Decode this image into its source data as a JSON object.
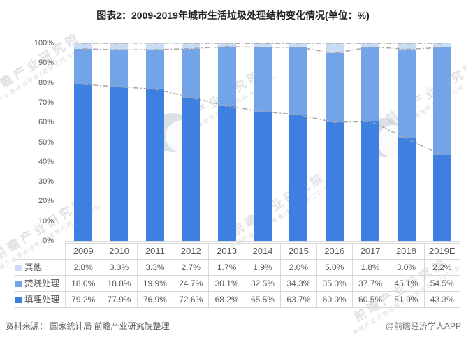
{
  "title": "图表2：2009-2019年城市生活垃圾处理结构变化情况(单位：%)",
  "chart_data": {
    "type": "bar",
    "stacked": true,
    "categories": [
      "2009",
      "2010",
      "2011",
      "2012",
      "2013",
      "2014",
      "2015",
      "2016",
      "2017",
      "2018",
      "2019E"
    ],
    "series": [
      {
        "name": "填埋处理",
        "key": "landfill",
        "color": "#3e80e1",
        "values": [
          79.2,
          77.9,
          76.9,
          72.6,
          68.2,
          65.5,
          63.7,
          60.0,
          60.5,
          51.9,
          43.3
        ]
      },
      {
        "name": "焚烧处理",
        "key": "incineration",
        "color": "#74a4e8",
        "values": [
          18.0,
          18.8,
          19.9,
          24.7,
          30.1,
          32.5,
          34.3,
          35.0,
          37.7,
          45.1,
          54.5
        ]
      },
      {
        "name": "其他",
        "key": "other",
        "color": "#c9dcf4",
        "values": [
          2.8,
          3.3,
          3.3,
          2.7,
          1.7,
          1.9,
          2.0,
          5.0,
          1.8,
          3.0,
          2.2
        ]
      }
    ],
    "overlay_lines": {
      "type": "cumulative-dash-dot",
      "color": "#a6a6a6",
      "note": "gray dash-dot lines drawn at cumulative totals of each stacked series (landfill; landfill+incineration; total=100%)"
    },
    "y_ticks": [
      "100%",
      "90%",
      "80%",
      "70%",
      "60%",
      "50%",
      "40%",
      "30%",
      "20%",
      "10%",
      "0%"
    ],
    "ylim": [
      0,
      100
    ],
    "grid": false,
    "legend_position": "table-left-column"
  },
  "table": {
    "columns": [
      "2009",
      "2010",
      "2011",
      "2012",
      "2013",
      "2014",
      "2015",
      "2016",
      "2017",
      "2018",
      "2019E"
    ],
    "rows": [
      {
        "label": "其他",
        "color": "#c9dcf4",
        "values": [
          "2.8%",
          "3.3%",
          "3.3%",
          "2.7%",
          "1.7%",
          "1.9%",
          "2.0%",
          "5.0%",
          "1.8%",
          "3.0%",
          "2.2%"
        ]
      },
      {
        "label": "焚烧处理",
        "color": "#74a4e8",
        "values": [
          "18.0%",
          "18.8%",
          "19.9%",
          "24.7%",
          "30.1%",
          "32.5%",
          "34.3%",
          "35.0%",
          "37.7%",
          "45.1%",
          "54.5%"
        ]
      },
      {
        "label": "填埋处理",
        "color": "#3e80e1",
        "values": [
          "79.2%",
          "77.9%",
          "76.9%",
          "72.6%",
          "68.2%",
          "65.5%",
          "63.7%",
          "60.0%",
          "60.5%",
          "51.9%",
          "43.3%"
        ]
      }
    ]
  },
  "watermark": {
    "main": "前瞻产业研究院",
    "sub": "中国产业咨询领导者(股票代码:839599)"
  },
  "footer": {
    "source": "资料来源： 国家统计局 前瞻产业研究院整理",
    "credit": "@前瞻经济学人APP"
  }
}
